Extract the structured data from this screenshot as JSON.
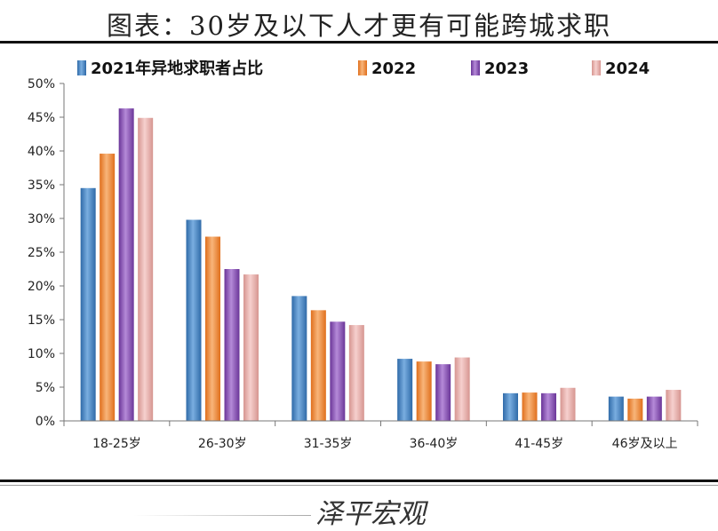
{
  "page": {
    "title": "图表：30岁及以下人才更有可能跨城求职",
    "source": "泽平宏观"
  },
  "colors": {
    "s2021": "#4a86c3",
    "s2022": "#f08a3a",
    "s2023": "#8a52b8",
    "s2024": "#e3aaa7"
  },
  "chart_data": {
    "type": "bar",
    "title": "图表：30岁及以下人才更有可能跨城求职",
    "categories": [
      "18-25岁",
      "26-30岁",
      "31-35岁",
      "36-40岁",
      "41-45岁",
      "46岁及以上"
    ],
    "series": [
      {
        "name": "2021年异地求职者占比",
        "key": "s2021",
        "values": [
          34.5,
          29.8,
          18.5,
          9.2,
          4.1,
          3.6
        ]
      },
      {
        "name": "2022",
        "key": "s2022",
        "values": [
          39.6,
          27.3,
          16.4,
          8.8,
          4.2,
          3.3
        ]
      },
      {
        "name": "2023",
        "key": "s2023",
        "values": [
          46.3,
          22.5,
          14.7,
          8.4,
          4.1,
          3.6
        ]
      },
      {
        "name": "2024",
        "key": "s2024",
        "values": [
          44.9,
          21.7,
          14.2,
          9.4,
          4.9,
          4.6
        ]
      }
    ],
    "ylim": [
      0,
      50
    ],
    "yticks": [
      "0%",
      "5%",
      "10%",
      "15%",
      "20%",
      "25%",
      "30%",
      "35%",
      "40%",
      "45%",
      "50%"
    ],
    "ytick_values": [
      0,
      5,
      10,
      15,
      20,
      25,
      30,
      35,
      40,
      45,
      50
    ],
    "xlabel": "",
    "ylabel": "",
    "legend_position": "top"
  }
}
